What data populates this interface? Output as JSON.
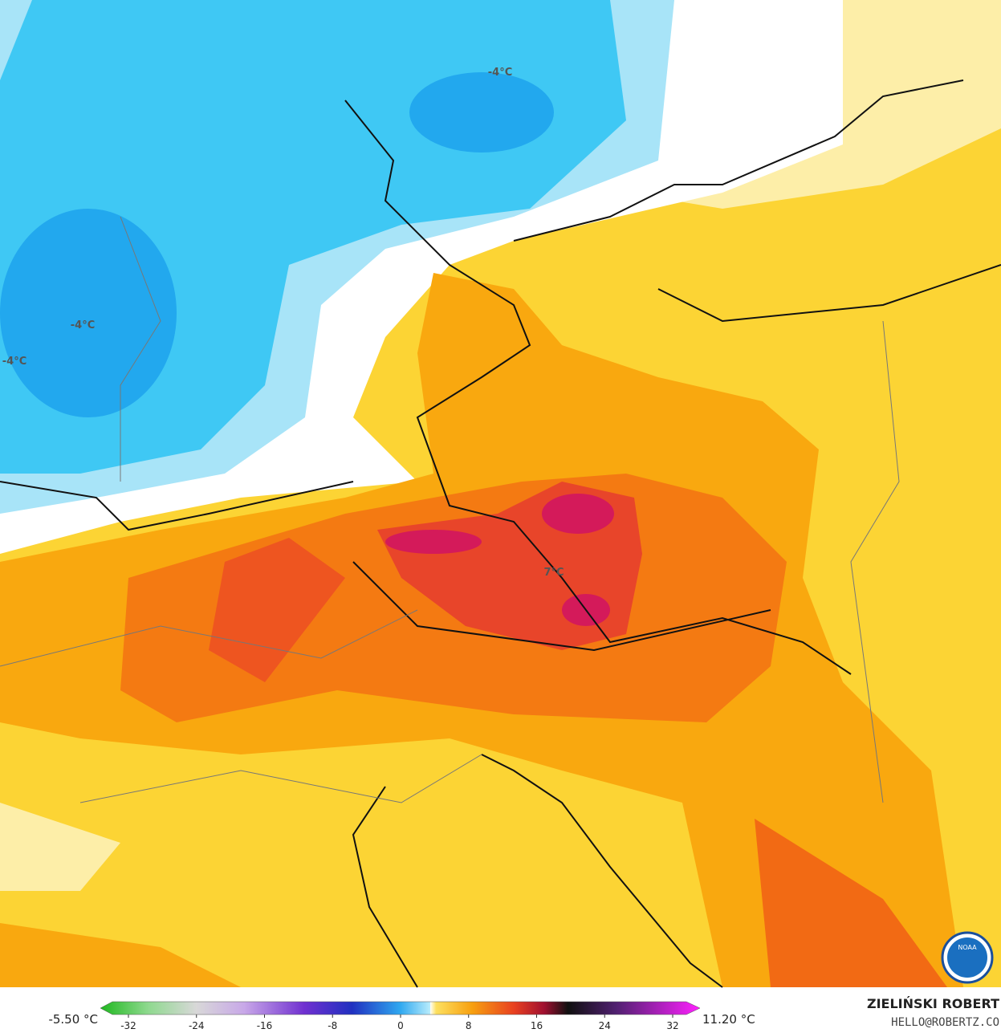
{
  "map": {
    "contour_labels": [
      "-4°C",
      "-4°C",
      "-4°C",
      "7°C"
    ]
  },
  "legend": {
    "min_label": "-5.50 °C",
    "max_label": "11.20 °C",
    "ticks": [
      -32,
      -24,
      -16,
      -8,
      0,
      8,
      16,
      24,
      32
    ]
  },
  "credits": {
    "author": "ZIELIŃSKI ROBERT",
    "contact": "HELLO@ROBERTZ.CO",
    "logo": "NOAA"
  }
}
